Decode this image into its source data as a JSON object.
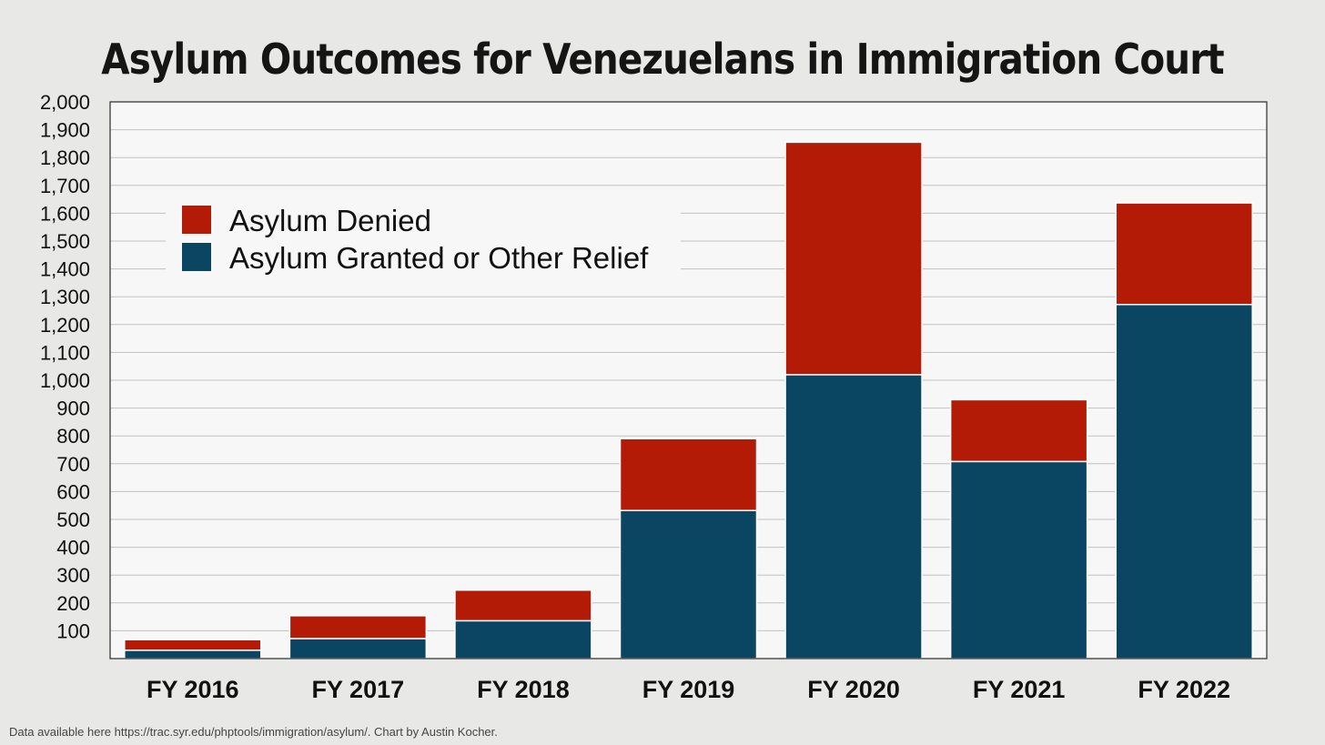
{
  "source_note": "Data available here https://trac.syr.edu/phptools/immigration/asylum/. Chart by Austin Kocher.",
  "colors": {
    "page_background": "#e8e9e6",
    "plot_background": "#f6f7f6",
    "gridline": "#c2c2c2",
    "denied": "#b31b06",
    "granted": "#0a4661"
  },
  "chart_data": {
    "type": "bar",
    "stacked": true,
    "title": "Asylum Outcomes for Venezuelans in Immigration Court",
    "xlabel": "",
    "ylabel": "",
    "categories": [
      "FY 2016",
      "FY 2017",
      "FY 2018",
      "FY 2019",
      "FY 2020",
      "FY 2021",
      "FY 2022"
    ],
    "series": [
      {
        "name": "Asylum Granted or Other Relief",
        "color": "#0a4661",
        "values": [
          30,
          72,
          136,
          532,
          1020,
          708,
          1272
        ]
      },
      {
        "name": "Asylum Denied",
        "color": "#b31b06",
        "values": [
          38,
          82,
          110,
          258,
          835,
          222,
          365
        ]
      }
    ],
    "ylim": [
      0,
      2000
    ],
    "y_tick_step": 100,
    "y_tick_labels": [
      "100",
      "200",
      "300",
      "400",
      "500",
      "600",
      "700",
      "800",
      "900",
      "1,000",
      "1,100",
      "1,200",
      "1,300",
      "1,400",
      "1,500",
      "1,600",
      "1,700",
      "1,800",
      "1,900",
      "2,000"
    ],
    "grid": true,
    "legend_position": "top-left",
    "legend_order": [
      "Asylum Denied",
      "Asylum Granted or Other Relief"
    ]
  }
}
